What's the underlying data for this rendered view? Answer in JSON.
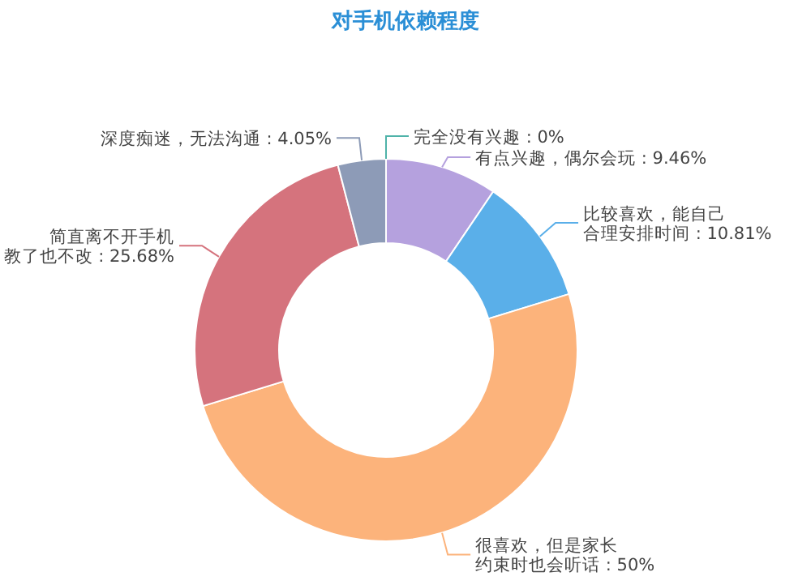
{
  "chart_data": {
    "type": "donut",
    "title": "对手机依赖程度",
    "categories": [
      "完全没有兴趣",
      "有点兴趣，偶尔会玩",
      "比较喜欢，能自己合理安排时间",
      "很喜欢，但是家长约束时也会听话",
      "简直离不开手机教了也不改",
      "深度痴迷，无法沟通"
    ],
    "values": [
      0,
      9.46,
      10.81,
      50,
      25.68,
      4.05
    ],
    "colors": [
      "#4fb3a9",
      "#b5a1de",
      "#5aafe9",
      "#fcb37b",
      "#d5737d",
      "#8d9bb7"
    ],
    "value_labels": [
      ": 0%",
      ": 9.46%",
      ": 10.81%",
      ": 50%",
      ": 25.68%",
      ": 4.05%"
    ]
  }
}
